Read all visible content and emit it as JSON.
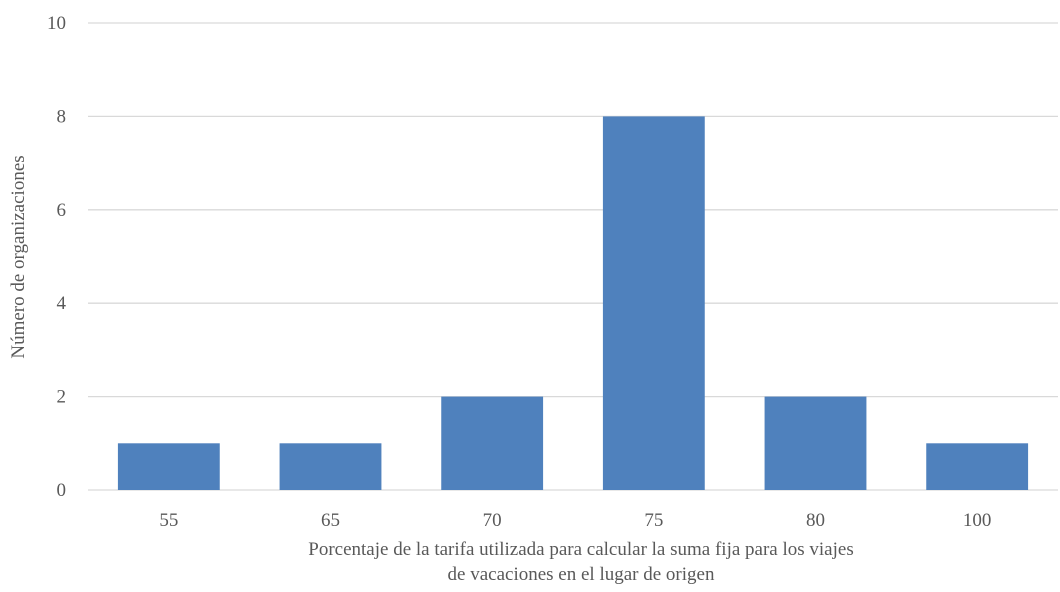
{
  "chart_data": {
    "type": "bar",
    "title": "",
    "categories": [
      "55",
      "65",
      "70",
      "75",
      "80",
      "100"
    ],
    "values": [
      1,
      1,
      2,
      8,
      2,
      1
    ],
    "xlabel_lines": [
      "Porcentaje de la tarifa utilizada para calcular la suma fija para los viajes",
      "de vacaciones en el lugar de origen"
    ],
    "ylabel": "Número de organizaciones",
    "ylim": [
      0,
      10
    ],
    "yticks": [
      "0",
      "2",
      "4",
      "6",
      "8",
      "10"
    ],
    "grid": true,
    "legend": "none",
    "bar_color": "#4f81bd"
  }
}
